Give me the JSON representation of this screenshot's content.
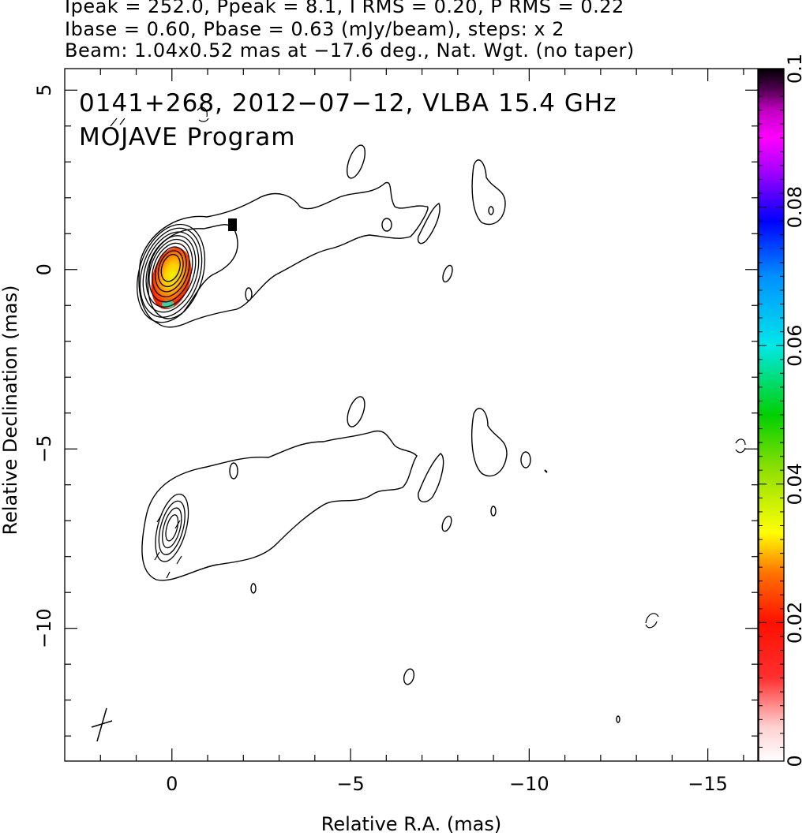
{
  "header": {
    "line1": "Ipeak = 252.0, Ppeak = 8.1, I RMS = 0.20, P RMS = 0.22",
    "line2": "Ibase = 0.60, Pbase = 0.63 (mJy/beam), steps: x 2",
    "line3": "Beam: 1.04x0.52 mas at −17.6 deg., Nat. Wgt. (no taper)"
  },
  "chart_data": {
    "type": "heatmap",
    "title": "",
    "annotation_lines": [
      "0141+268, 2012−07−12, VLBA 15.4 GHz",
      "MOJAVE Program"
    ],
    "xlabel": "Relative R.A. (mas)",
    "ylabel": "Relative Declination (mas)",
    "xlim": [
      3,
      -16.4
    ],
    "ylim": [
      -13.7,
      5.6
    ],
    "x_ticks": [
      {
        "value": 0,
        "label": "0"
      },
      {
        "value": -5,
        "label": "−5"
      },
      {
        "value": -10,
        "label": "−10"
      },
      {
        "value": -15,
        "label": "−15"
      }
    ],
    "y_ticks": [
      {
        "value": 5,
        "label": "5"
      },
      {
        "value": 0,
        "label": "0"
      },
      {
        "value": -5,
        "label": "−5"
      },
      {
        "value": -10,
        "label": "−10"
      }
    ],
    "colorbar": {
      "range": [
        0,
        0.1
      ],
      "ticks": [
        {
          "value": 0,
          "label": "0"
        },
        {
          "value": 0.02,
          "label": "0.02"
        },
        {
          "value": 0.04,
          "label": "0.04"
        },
        {
          "value": 0.06,
          "label": "0.06"
        },
        {
          "value": 0.08,
          "label": "0.08"
        },
        {
          "value": 0.1,
          "label": "0.1"
        }
      ]
    },
    "upper_panel": {
      "core_contour_rings": 9,
      "core_center_mas": [
        0,
        0
      ],
      "color_blob_peak_fraction": 0.02
    },
    "lower_panel": {
      "offset_dec_mas": -7.2,
      "core_contour_rings": 4
    },
    "beam_marker_mas": [
      -2.0,
      -12.5
    ]
  }
}
